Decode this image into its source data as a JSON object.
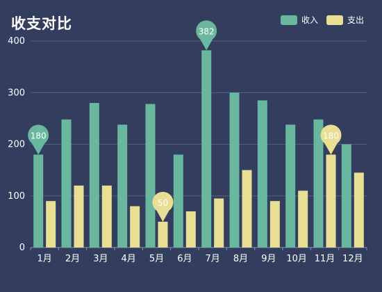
{
  "chart_data": {
    "type": "bar",
    "title": "收支对比",
    "categories": [
      "1月",
      "2月",
      "3月",
      "4月",
      "5月",
      "6月",
      "7月",
      "8月",
      "9月",
      "10月",
      "11月",
      "12月"
    ],
    "series": [
      {
        "name": "收入",
        "color": "#6ab79f",
        "values": [
          180,
          248,
          280,
          238,
          278,
          180,
          382,
          300,
          285,
          238,
          248,
          200
        ]
      },
      {
        "name": "支出",
        "color": "#e8df95",
        "values": [
          90,
          120,
          120,
          80,
          50,
          70,
          95,
          150,
          90,
          110,
          180,
          145
        ]
      }
    ],
    "ylim": [
      0,
      400
    ],
    "yticks": [
      0,
      100,
      200,
      300,
      400
    ],
    "grid": true,
    "legend_position": "top-right",
    "annotations": [
      {
        "series": 0,
        "category": "1月",
        "label": "180"
      },
      {
        "series": 0,
        "category": "7月",
        "label": "382"
      },
      {
        "series": 1,
        "category": "5月",
        "label": "50"
      },
      {
        "series": 1,
        "category": "11月",
        "label": "180"
      }
    ]
  }
}
